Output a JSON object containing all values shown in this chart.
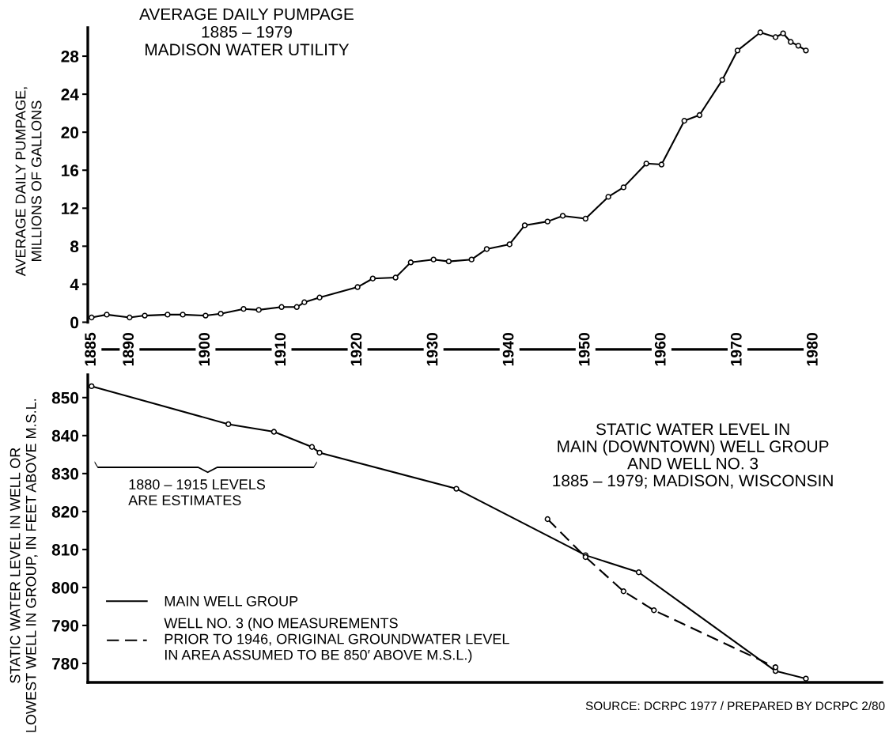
{
  "chart_data": [
    {
      "type": "line",
      "title": "AVERAGE DAILY PUMPAGE\n1885 – 1979\nMADISON WATER UTILITY",
      "ylabel": "AVERAGE DAILY PUMPAGE,\nMILLIONS OF GALLONS",
      "x": [
        1885,
        1887,
        1890,
        1892,
        1895,
        1897,
        1900,
        1902,
        1905,
        1907,
        1910,
        1912,
        1913,
        1915,
        1920,
        1922,
        1925,
        1927,
        1930,
        1932,
        1935,
        1937,
        1940,
        1942,
        1945,
        1947,
        1950,
        1953,
        1955,
        1958,
        1960,
        1963,
        1965,
        1968,
        1970,
        1973,
        1975,
        1976,
        1977,
        1978,
        1979
      ],
      "series": [
        {
          "color": "#000000",
          "values": [
            0.5,
            0.8,
            0.5,
            0.7,
            0.8,
            0.8,
            0.7,
            0.9,
            1.4,
            1.3,
            1.6,
            1.6,
            2.1,
            2.6,
            3.7,
            4.6,
            4.7,
            6.3,
            6.6,
            6.4,
            6.6,
            7.7,
            8.2,
            10.2,
            10.6,
            11.2,
            10.9,
            13.2,
            14.2,
            16.7,
            16.6,
            21.2,
            21.8,
            25.5,
            28.6,
            30.5,
            30.0,
            30.4,
            29.5,
            29.1,
            28.6
          ]
        }
      ],
      "xlim": [
        1884.5,
        1980
      ],
      "xticks": [
        1885,
        1890,
        1900,
        1910,
        1920,
        1930,
        1940,
        1950,
        1960,
        1970,
        1980
      ],
      "ylim": [
        0,
        31
      ],
      "yticks": [
        0,
        4,
        8,
        12,
        16,
        20,
        24,
        28
      ],
      "marker": "circle",
      "line_style": "solid",
      "grid": false,
      "legend": false
    },
    {
      "type": "line",
      "title": "STATIC WATER LEVEL IN\nMAIN (DOWNTOWN) WELL GROUP\nAND WELL NO. 3\n1885 – 1979; MADISON, WISCONSIN",
      "ylabel": "STATIC WATER LEVEL IN WELL OR\nLOWEST WELL IN GROUP, IN FEET ABOVE M.S.L.",
      "series": [
        {
          "name": "MAIN WELL GROUP",
          "color": "#000000",
          "line_style": "solid",
          "x": [
            1885,
            1903,
            1909,
            1914,
            1915,
            1933,
            1950,
            1957,
            1975,
            1979
          ],
          "values": [
            853,
            843,
            841,
            837,
            835.5,
            826,
            808.5,
            804,
            778,
            776
          ]
        },
        {
          "name": "WELL NO. 3 (NO MEASUREMENTS\nPRIOR TO 1946, ORIGINAL GROUNDWATER LEVEL\nIN AREA ASSUMED TO BE 850′ ABOVE M.S.L.)",
          "color": "#000000",
          "line_style": "dashed",
          "x": [
            1945,
            1950,
            1955,
            1959,
            1975
          ],
          "values": [
            818,
            808,
            799,
            794,
            779
          ]
        }
      ],
      "xlim": [
        1884.5,
        1989
      ],
      "xticks": [
        1885,
        1890,
        1900,
        1910,
        1920,
        1930,
        1940,
        1950,
        1960,
        1970,
        1980
      ],
      "ylim": [
        775,
        856
      ],
      "yticks": [
        780,
        790,
        800,
        810,
        820,
        830,
        840,
        850
      ],
      "tick_labels": "y",
      "marker": "circle",
      "grid": false,
      "legend": "bottom left",
      "annotations": [
        "1880 – 1915 LEVELS\nARE ESTIMATES",
        "SOURCE: DCRPC 1977 / PREPARED BY DCRPC 2/80"
      ]
    }
  ]
}
